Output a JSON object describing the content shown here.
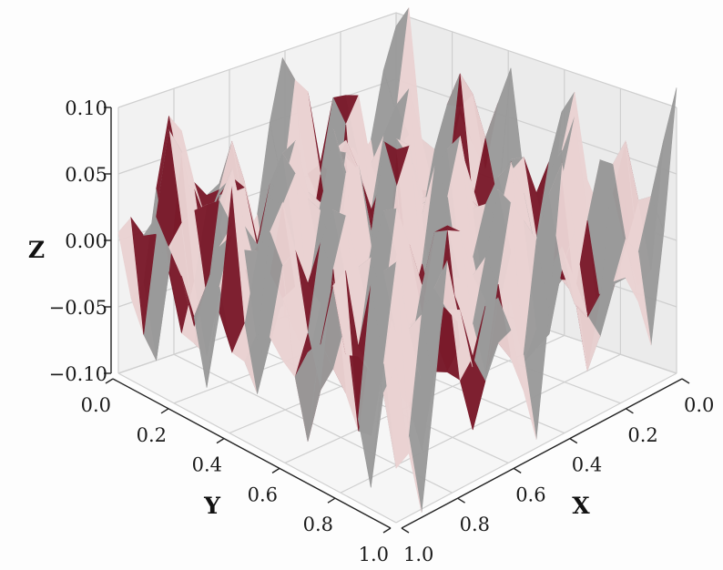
{
  "chart_data": {
    "type": "surface3d",
    "title": "",
    "xlabel": "X",
    "ylabel": "Y",
    "zlabel": "Z",
    "xlim": [
      0.0,
      1.0
    ],
    "ylim": [
      0.0,
      1.0
    ],
    "zlim": [
      -0.1,
      0.1
    ],
    "xticks": [
      "0.0",
      "0.2",
      "0.4",
      "0.6",
      "0.8",
      "1.0"
    ],
    "yticks": [
      "0.0",
      "0.2",
      "0.4",
      "0.6",
      "0.8",
      "1.0"
    ],
    "zticks": [
      "−0.10",
      "−0.05",
      "0.00",
      "0.05",
      "0.10"
    ],
    "grid": true,
    "colormap": [
      "#e9d2d2",
      "#7a1a2a",
      "#9a9a9a"
    ],
    "surface": "oscillating surface, amplitude about 0.11, roughly 5 waves per unit along X and along Y"
  }
}
